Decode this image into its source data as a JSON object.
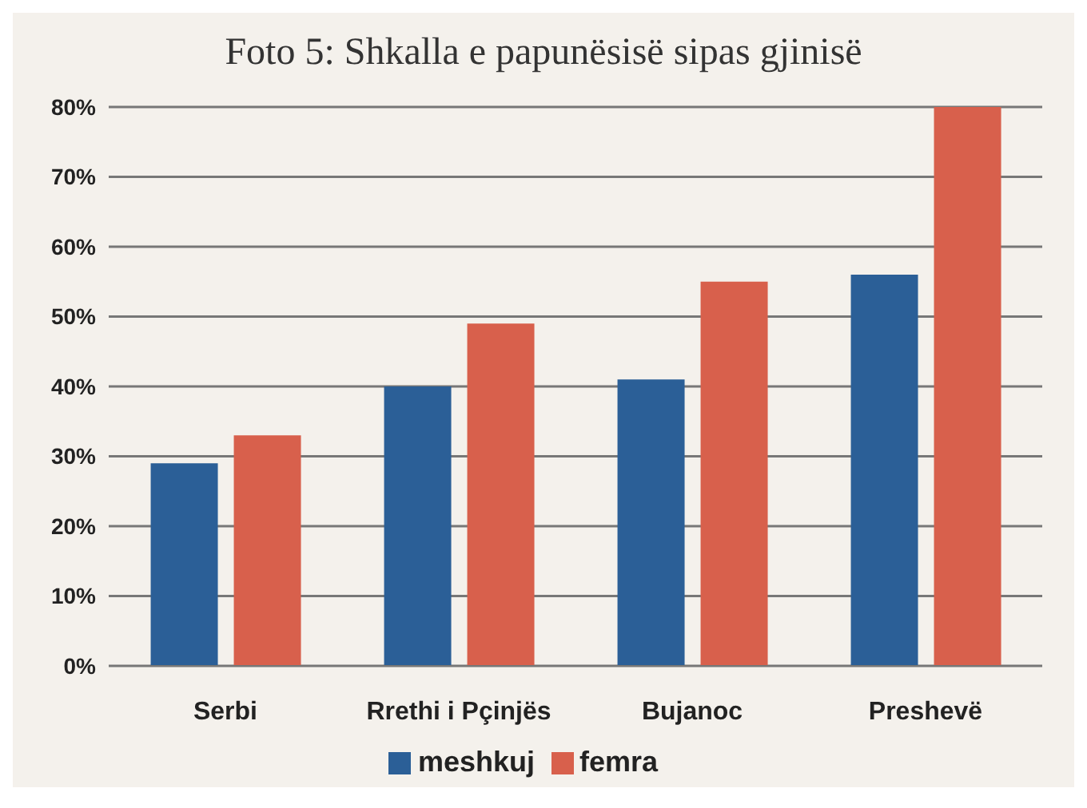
{
  "chart_data": {
    "type": "bar",
    "title": "Foto 5: Shkalla e papunësisë sipas gjinisë",
    "categories": [
      "Serbi",
      "Rrethi i Pçinjës",
      "Bujanoc",
      "Preshevë"
    ],
    "series": [
      {
        "name": "meshkuj",
        "color": "#2b5f97",
        "values": [
          29,
          40,
          41,
          56
        ]
      },
      {
        "name": "femra",
        "color": "#d8604c",
        "values": [
          33,
          49,
          55,
          80
        ]
      }
    ],
    "ylim": [
      0,
      80
    ],
    "yticks": [
      {
        "value": 0,
        "label": "0%"
      },
      {
        "value": 10,
        "label": "10%"
      },
      {
        "value": 20,
        "label": "20%"
      },
      {
        "value": 30,
        "label": "30%"
      },
      {
        "value": 40,
        "label": "40%"
      },
      {
        "value": 50,
        "label": "50%"
      },
      {
        "value": 60,
        "label": "60%"
      },
      {
        "value": 70,
        "label": "70%"
      },
      {
        "value": 80,
        "label": "80%"
      }
    ],
    "grid": "y",
    "legend": "bottom"
  }
}
